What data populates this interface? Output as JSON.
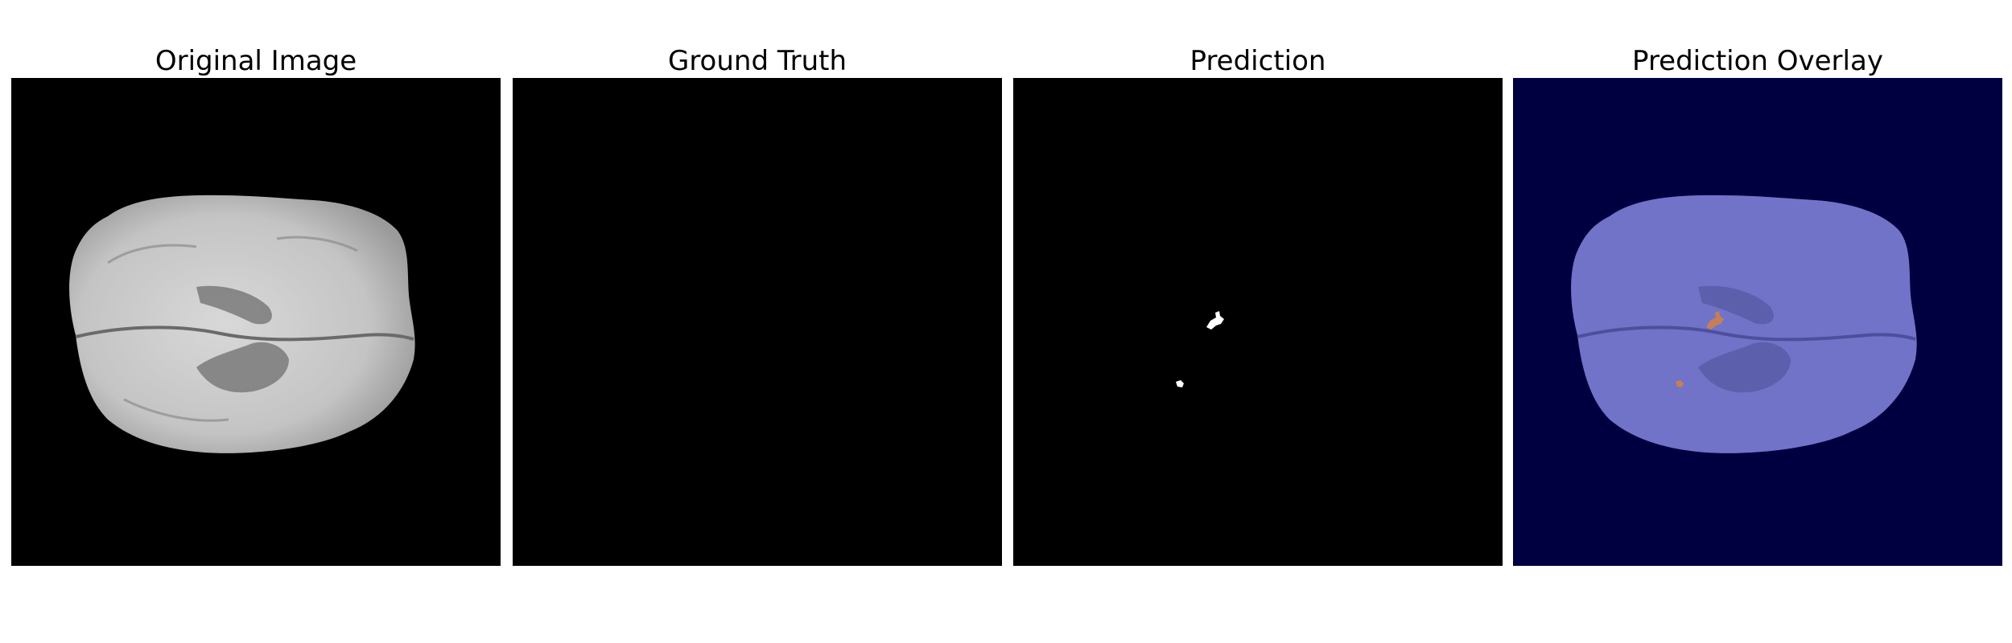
{
  "figure": {
    "panels": [
      {
        "id": "original",
        "title": "Original Image"
      },
      {
        "id": "ground_truth",
        "title": "Ground Truth"
      },
      {
        "id": "prediction",
        "title": "Prediction"
      },
      {
        "id": "overlay",
        "title": "Prediction Overlay"
      }
    ]
  },
  "colors": {
    "background": "#000000",
    "overlay_background": "#000040",
    "overlay_brain": "#7073c8",
    "prediction_mask": "#ffffff",
    "prediction_overlay": "#d0804a"
  }
}
